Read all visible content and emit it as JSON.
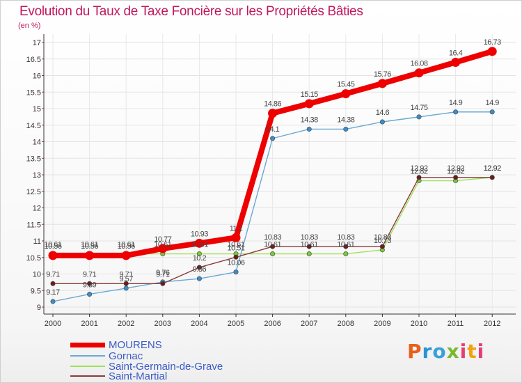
{
  "header": {
    "title": "Evolution du Taux de Taxe Foncière sur les Propriétés Bâties",
    "unit": "(en %)"
  },
  "logo": {
    "text": "Proxiti",
    "letters": [
      "P",
      "r",
      "o",
      "x",
      "i",
      "t",
      "i"
    ],
    "colors": [
      "#e8601c",
      "#2a93d5",
      "#3aa0d8",
      "#7cb82f",
      "#e63c74",
      "#f2a20f",
      "#e63c74"
    ]
  },
  "chart_data": {
    "type": "line",
    "title": "Evolution du Taux de Taxe Foncière sur les Propriétés Bâties",
    "ylabel": "(en %)",
    "xlabel": "",
    "ylim": [
      9,
      17
    ],
    "y_ticks": [
      "9",
      "9.5",
      "10",
      "10.5",
      "11",
      "11.5",
      "12",
      "12.5",
      "13",
      "13.5",
      "14",
      "14.5",
      "15",
      "15.5",
      "16",
      "16.5",
      "17"
    ],
    "categories": [
      "2000",
      "2001",
      "2002",
      "2003",
      "2004",
      "2005",
      "2006",
      "2007",
      "2008",
      "2009",
      "2010",
      "2011",
      "2012"
    ],
    "series": [
      {
        "name": "Saint-Germain-de-Grave",
        "color": "#9ee05a",
        "marker": "#7cc83a",
        "values": [
          10.61,
          10.61,
          10.61,
          10.61,
          10.61,
          10.61,
          10.61,
          10.61,
          10.61,
          10.73,
          12.82,
          12.82,
          12.92
        ],
        "labels": [
          "10.61",
          "10.61",
          "10.61",
          "10.61",
          "10.61",
          "10.61",
          "10.61",
          "10.61",
          "10.61",
          "10.73",
          "12.82",
          "12.82",
          "12.92"
        ]
      },
      {
        "name": "Gornac",
        "color": "#6aa8d4",
        "marker": "#3d8ec8",
        "values": [
          9.17,
          9.39,
          9.57,
          9.76,
          9.86,
          10.06,
          14.1,
          14.38,
          14.38,
          14.6,
          14.75,
          14.9,
          14.9
        ],
        "labels": [
          "9.17",
          "9.39",
          "9.57",
          "9.76",
          "9.86",
          "10.06",
          "14.1",
          "14.38",
          "14.38",
          "14.6",
          "14.75",
          "14.9",
          "14.9"
        ]
      },
      {
        "name": "Saint-Martial",
        "color": "#8a3a3a",
        "marker": "#6a1e1e",
        "values": [
          9.71,
          9.71,
          9.71,
          9.71,
          10.2,
          10.51,
          10.83,
          10.83,
          10.83,
          10.83,
          12.92,
          12.92,
          12.92
        ],
        "labels": [
          "9.71",
          "9.71",
          "9.71",
          "9.71",
          "10.2",
          "10.51",
          "10.83",
          "10.83",
          "10.83",
          "10.83",
          "12.92",
          "12.92",
          "12.92"
        ]
      },
      {
        "name": "MOURENS",
        "color": "#ee0000",
        "marker": "#ee0000",
        "values": [
          10.56,
          10.56,
          10.56,
          10.77,
          10.93,
          11.1,
          14.86,
          15.15,
          15.45,
          15.76,
          16.08,
          16.4,
          16.73
        ],
        "labels": [
          "10.56",
          "10.56",
          "10.56",
          "10.77",
          "10.93",
          "11.1",
          "14.86",
          "15.15",
          "15.45",
          "15.76",
          "16.08",
          "16.4",
          "16.73"
        ]
      }
    ],
    "legend": [
      "MOURENS",
      "Gornac",
      "Saint-Germain-de-Grave",
      "Saint-Martial"
    ],
    "legend_placement": "bottom-left"
  }
}
